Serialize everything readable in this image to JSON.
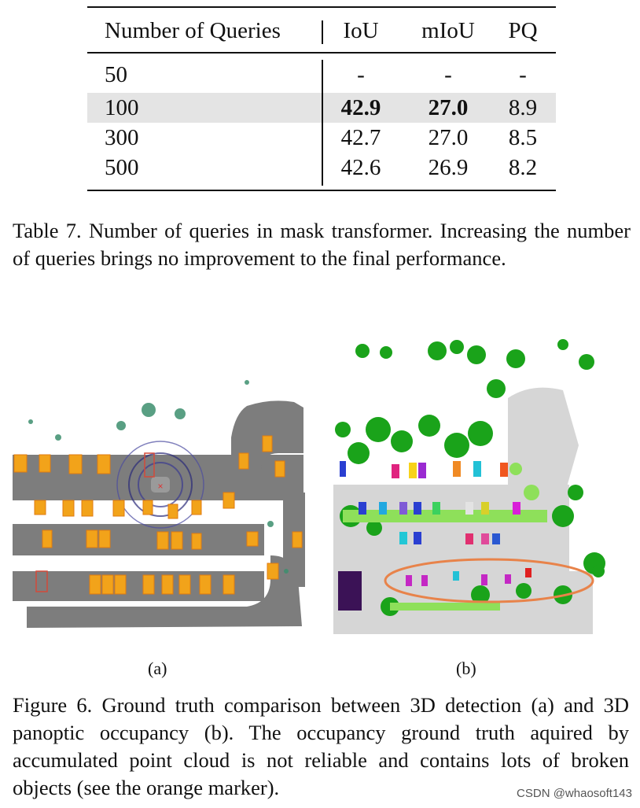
{
  "table": {
    "headers": [
      "Number of Queries",
      "IoU",
      "mIoU",
      "PQ"
    ],
    "rows": [
      {
        "queries": "50",
        "iou": "-",
        "miou": "-",
        "pq": "-",
        "highlight": false,
        "bold": false
      },
      {
        "queries": "100",
        "iou": "42.9",
        "miou": "27.0",
        "pq": "8.9",
        "highlight": true,
        "bold": true
      },
      {
        "queries": "300",
        "iou": "42.7",
        "miou": "27.0",
        "pq": "8.5",
        "highlight": false,
        "bold": false
      },
      {
        "queries": "500",
        "iou": "42.6",
        "miou": "26.9",
        "pq": "8.2",
        "highlight": false,
        "bold": false
      }
    ],
    "highlight_color": "#e4e4e4"
  },
  "table_caption": "Table 7.  Number of queries in mask transformer.  Increasing the number of queries brings no improvement to the final performance.",
  "figure": {
    "panels": [
      {
        "label": "(a)",
        "content": "3D detection ground truth: bird's-eye-view point cloud with orange boxes around vehicles"
      },
      {
        "label": "(b)",
        "content": "3D panoptic occupancy ground truth with colored instances and an orange ellipse marker"
      }
    ],
    "box_color": "#f2a31a",
    "marker_color": "#e8834a"
  },
  "figure_caption": "Figure 6. Ground truth comparison between 3D detection (a) and 3D panoptic occupancy (b). The occupancy ground truth aquired by accumulated point cloud is not reliable and contains lots of broken objects (see the orange marker).",
  "watermark": "CSDN @whaosoft143"
}
